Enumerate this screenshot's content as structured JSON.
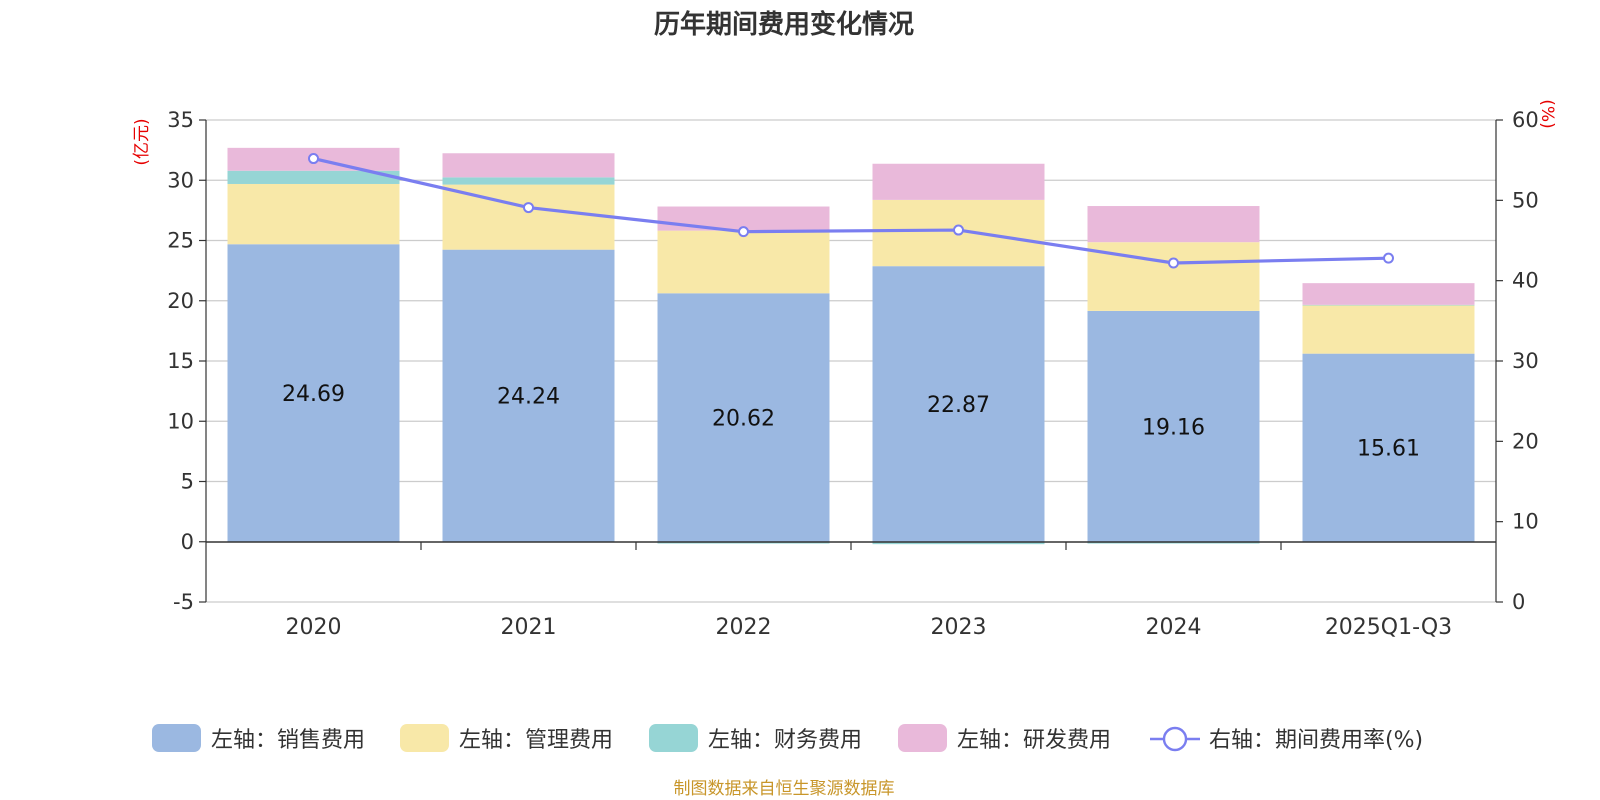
{
  "chart_data": {
    "type": "bar",
    "title": "历年期间费用变化情况",
    "categories": [
      "2020",
      "2021",
      "2022",
      "2023",
      "2024",
      "2025Q1-Q3"
    ],
    "left_axis": {
      "unit": "(亿元)",
      "ylim": [
        -5,
        35
      ],
      "ticks": [
        -5,
        0,
        5,
        10,
        15,
        20,
        25,
        30,
        35
      ]
    },
    "right_axis": {
      "unit": "(%)",
      "ylim": [
        0,
        60
      ],
      "ticks": [
        0,
        10,
        20,
        30,
        40,
        50,
        60
      ]
    },
    "series": [
      {
        "name": "左轴：销售费用",
        "kind": "bar",
        "axis": "left",
        "color": "#9bb8e1",
        "values": [
          24.69,
          24.24,
          20.62,
          22.87,
          19.16,
          15.61
        ],
        "labels": [
          "24.69",
          "24.24",
          "20.62",
          "22.87",
          "19.16",
          "15.61"
        ]
      },
      {
        "name": "左轴：管理费用",
        "kind": "bar",
        "axis": "left",
        "color": "#f8e8a8",
        "values": [
          5.0,
          5.4,
          5.2,
          5.5,
          5.7,
          4.0
        ]
      },
      {
        "name": "左轴：财务费用",
        "kind": "bar",
        "axis": "left",
        "color": "#96d5d5",
        "values": [
          1.1,
          0.6,
          -0.15,
          -0.2,
          -0.15,
          0.05
        ]
      },
      {
        "name": "左轴：研发费用",
        "kind": "bar",
        "axis": "left",
        "color": "#e9b9da",
        "values": [
          1.9,
          2.0,
          2.0,
          3.0,
          3.0,
          1.8
        ]
      },
      {
        "name": "右轴：期间费用率(%)",
        "kind": "line",
        "axis": "right",
        "color": "#7a7ef0",
        "values": [
          55.2,
          49.1,
          46.1,
          46.3,
          42.2,
          42.8
        ]
      }
    ],
    "source": "制图数据来自恒生聚源数据库"
  }
}
